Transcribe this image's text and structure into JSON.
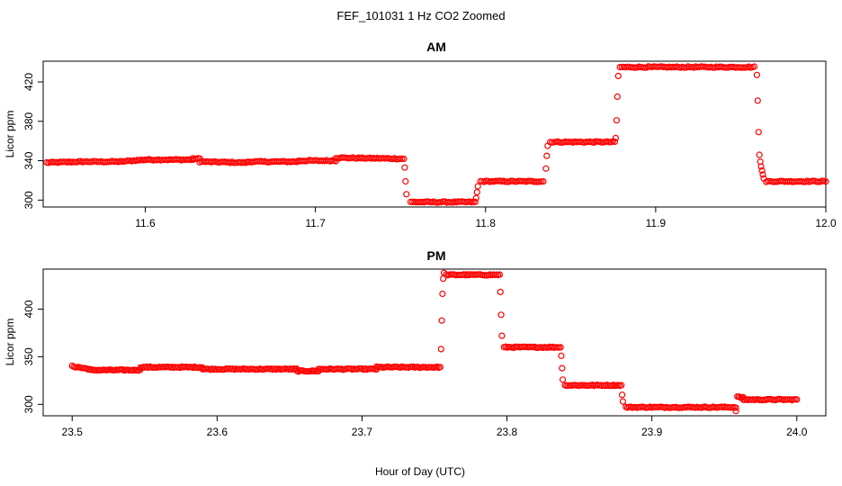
{
  "figure": {
    "title": "FEF_101031  1 Hz CO2 Zoomed",
    "xlabel": "Hour of Day (UTC)"
  },
  "chart_data": [
    {
      "type": "scatter",
      "title": "AM",
      "ylabel": "Licor ppm",
      "xlabel": "Hour of Day (UTC)",
      "xlim": [
        11.54,
        12.0
      ],
      "ylim": [
        293,
        441
      ],
      "x_ticks": [
        "11.6",
        "11.7",
        "11.8",
        "11.9",
        "12.0"
      ],
      "y_ticks": [
        "300",
        "340",
        "380",
        "420"
      ],
      "marker_color": "#ff0000",
      "marker": "open-circle",
      "grid": false,
      "segments": [
        {
          "x_start": 11.542,
          "x_end": 11.562,
          "y_start": 338,
          "y_end": 339
        },
        {
          "x_start": 11.562,
          "x_end": 11.585,
          "y_start": 339,
          "y_end": 339
        },
        {
          "x_start": 11.585,
          "x_end": 11.6,
          "y_start": 339,
          "y_end": 341
        },
        {
          "x_start": 11.6,
          "x_end": 11.628,
          "y_start": 341,
          "y_end": 341
        },
        {
          "x_start": 11.628,
          "x_end": 11.632,
          "y_start": 342,
          "y_end": 342
        },
        {
          "x_start": 11.632,
          "x_end": 11.66,
          "y_start": 339,
          "y_end": 338
        },
        {
          "x_start": 11.66,
          "x_end": 11.69,
          "y_start": 339,
          "y_end": 339
        },
        {
          "x_start": 11.69,
          "x_end": 11.712,
          "y_start": 340,
          "y_end": 340
        },
        {
          "x_start": 11.712,
          "x_end": 11.752,
          "y_start": 343,
          "y_end": 342
        },
        {
          "x_start": 11.756,
          "x_end": 11.794,
          "y_start": 298,
          "y_end": 298
        },
        {
          "x_start": 11.797,
          "x_end": 11.834,
          "y_start": 319,
          "y_end": 319
        },
        {
          "x_start": 11.838,
          "x_end": 11.876,
          "y_start": 359,
          "y_end": 359
        },
        {
          "x_start": 11.879,
          "x_end": 11.958,
          "y_start": 435,
          "y_end": 435
        },
        {
          "x_start": 11.965,
          "x_end": 12.0,
          "y_start": 319,
          "y_end": 319
        }
      ],
      "transition_points": [
        {
          "x": 11.7525,
          "y": 333
        },
        {
          "x": 11.753,
          "y": 319
        },
        {
          "x": 11.7535,
          "y": 306
        },
        {
          "x": 11.7945,
          "y": 302
        },
        {
          "x": 11.795,
          "y": 308
        },
        {
          "x": 11.7955,
          "y": 314
        },
        {
          "x": 11.8355,
          "y": 332
        },
        {
          "x": 11.836,
          "y": 345
        },
        {
          "x": 11.8365,
          "y": 355
        },
        {
          "x": 11.8765,
          "y": 363
        },
        {
          "x": 11.877,
          "y": 381
        },
        {
          "x": 11.8775,
          "y": 405
        },
        {
          "x": 11.878,
          "y": 426
        },
        {
          "x": 11.9595,
          "y": 427
        },
        {
          "x": 11.96,
          "y": 401
        },
        {
          "x": 11.9605,
          "y": 369
        },
        {
          "x": 11.961,
          "y": 346
        },
        {
          "x": 11.9615,
          "y": 339
        },
        {
          "x": 11.962,
          "y": 334
        },
        {
          "x": 11.9625,
          "y": 330
        },
        {
          "x": 11.963,
          "y": 326
        },
        {
          "x": 11.9635,
          "y": 322
        }
      ]
    },
    {
      "type": "scatter",
      "title": "PM",
      "ylabel": "Licor ppm",
      "xlabel": "Hour of Day (UTC)",
      "xlim": [
        23.48,
        24.02
      ],
      "ylim": [
        288,
        442
      ],
      "x_ticks": [
        "23.5",
        "23.6",
        "23.7",
        "23.8",
        "23.9",
        "24.0"
      ],
      "y_ticks": [
        "300",
        "350",
        "400"
      ],
      "marker_color": "#ff0000",
      "marker": "open-circle",
      "grid": false,
      "segments": [
        {
          "x_start": 23.5,
          "x_end": 23.512,
          "y_start": 340,
          "y_end": 337
        },
        {
          "x_start": 23.512,
          "x_end": 23.547,
          "y_start": 336,
          "y_end": 336
        },
        {
          "x_start": 23.547,
          "x_end": 23.59,
          "y_start": 339,
          "y_end": 339
        },
        {
          "x_start": 23.59,
          "x_end": 23.655,
          "y_start": 337,
          "y_end": 337
        },
        {
          "x_start": 23.655,
          "x_end": 23.67,
          "y_start": 335,
          "y_end": 335
        },
        {
          "x_start": 23.67,
          "x_end": 23.71,
          "y_start": 337,
          "y_end": 337
        },
        {
          "x_start": 23.71,
          "x_end": 23.754,
          "y_start": 339,
          "y_end": 339
        },
        {
          "x_start": 23.758,
          "x_end": 23.795,
          "y_start": 436,
          "y_end": 436
        },
        {
          "x_start": 23.798,
          "x_end": 23.837,
          "y_start": 360,
          "y_end": 360
        },
        {
          "x_start": 23.84,
          "x_end": 23.879,
          "y_start": 320,
          "y_end": 320
        },
        {
          "x_start": 23.882,
          "x_end": 23.958,
          "y_start": 297,
          "y_end": 297
        },
        {
          "x_start": 23.959,
          "x_end": 23.963,
          "y_start": 308,
          "y_end": 307
        },
        {
          "x_start": 23.963,
          "x_end": 24.0,
          "y_start": 305,
          "y_end": 305
        }
      ],
      "transition_points": [
        {
          "x": 23.7545,
          "y": 358
        },
        {
          "x": 23.755,
          "y": 388
        },
        {
          "x": 23.7555,
          "y": 416
        },
        {
          "x": 23.756,
          "y": 432
        },
        {
          "x": 23.7565,
          "y": 438
        },
        {
          "x": 23.7955,
          "y": 418
        },
        {
          "x": 23.796,
          "y": 394
        },
        {
          "x": 23.7965,
          "y": 372
        },
        {
          "x": 23.8375,
          "y": 351
        },
        {
          "x": 23.838,
          "y": 338
        },
        {
          "x": 23.8385,
          "y": 326
        },
        {
          "x": 23.8795,
          "y": 310
        },
        {
          "x": 23.88,
          "y": 303
        },
        {
          "x": 23.958,
          "y": 293
        }
      ]
    }
  ]
}
